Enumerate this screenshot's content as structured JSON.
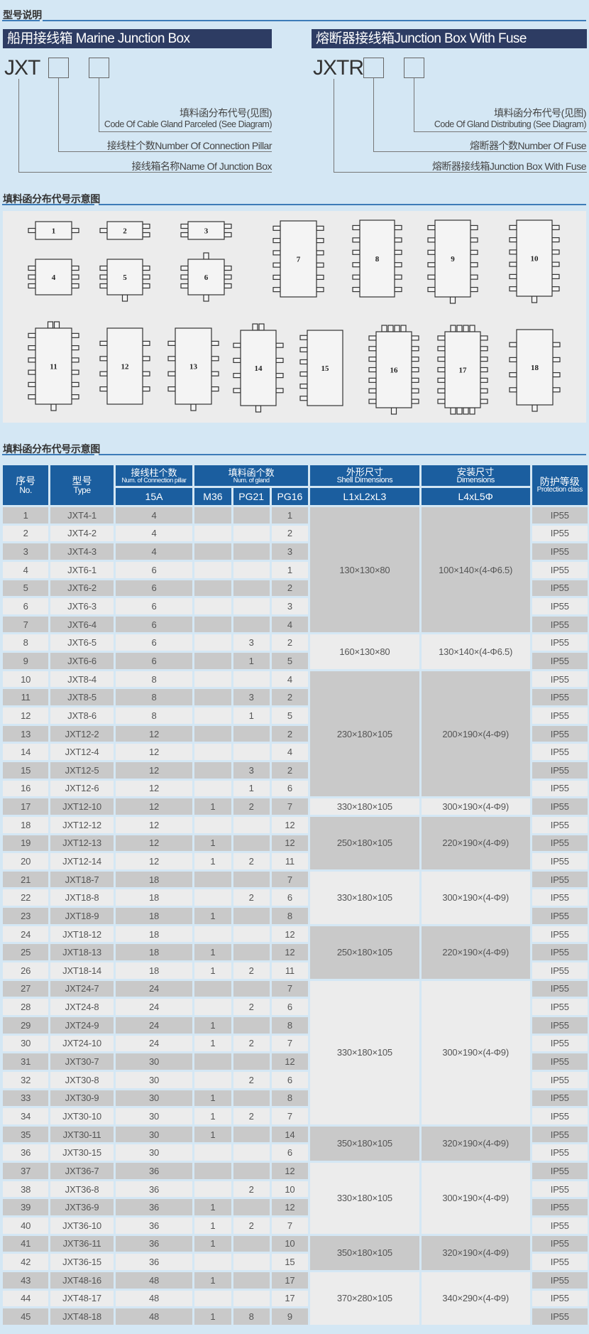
{
  "sections": {
    "model_desc": "型号说明",
    "diagram": "填料函分布代号示意图",
    "table": "填料函分布代号示意图"
  },
  "left_model": {
    "title": "船用接线箱 Marine Junction Box",
    "code": "JXT",
    "label_gland_cn": "填料函分布代号(见图)",
    "label_gland_en": "Code Of Cable Gland Parceled (See Diagram)",
    "label_pillar": "接线柱个数Number Of Connection Pillar",
    "label_name": "接线箱名称Name Of Junction Box"
  },
  "right_model": {
    "title": "熔断器接线箱Junction Box With Fuse",
    "code": "JXTR",
    "label_gland_cn": "填料函分布代号(见图)",
    "label_gland_en": "Code Of Gland Distributing (See Diagram)",
    "label_fuse": "熔断器个数Number Of Fuse",
    "label_name": "熔断器接线箱Junction Box With Fuse"
  },
  "diagram": {
    "labels": [
      "1",
      "2",
      "3",
      "4",
      "5",
      "6",
      "7",
      "8",
      "9",
      "10",
      "11",
      "12",
      "13",
      "14",
      "15",
      "16",
      "17",
      "18"
    ]
  },
  "table": {
    "header": {
      "no_cn": "序号",
      "no_en": "No.",
      "type_cn": "型号",
      "type_en": "Type",
      "pillar_cn": "接线柱个数",
      "pillar_en": "Num. of Connection pillar",
      "gland_cn": "填料函个数",
      "gland_en": "Num. of gland",
      "shell_cn": "外形尺寸",
      "shell_en": "Shell Dimensions",
      "dims_cn": "安装尺寸",
      "dims_en": "Dimensions",
      "prot_cn": "防护等级",
      "prot_en": "Protection class",
      "sub_15a": "15A",
      "sub_m36": "M36",
      "sub_pg21": "PG21",
      "sub_pg16": "PG16",
      "sub_shell": "L1xL2xL3",
      "sub_dims": "L4xL5Φ"
    },
    "rows": [
      [
        "1",
        "JXT4-1",
        "4",
        "",
        "",
        "1",
        "IP55"
      ],
      [
        "2",
        "JXT4-2",
        "4",
        "",
        "",
        "2",
        "IP55"
      ],
      [
        "3",
        "JXT4-3",
        "4",
        "",
        "",
        "3",
        "IP55"
      ],
      [
        "4",
        "JXT6-1",
        "6",
        "",
        "",
        "1",
        "IP55"
      ],
      [
        "5",
        "JXT6-2",
        "6",
        "",
        "",
        "2",
        "IP55"
      ],
      [
        "6",
        "JXT6-3",
        "6",
        "",
        "",
        "3",
        "IP55"
      ],
      [
        "7",
        "JXT6-4",
        "6",
        "",
        "",
        "4",
        "IP55"
      ],
      [
        "8",
        "JXT6-5",
        "6",
        "",
        "3",
        "2",
        "IP55"
      ],
      [
        "9",
        "JXT6-6",
        "6",
        "",
        "1",
        "5",
        "IP55"
      ],
      [
        "10",
        "JXT8-4",
        "8",
        "",
        "",
        "4",
        "IP55"
      ],
      [
        "11",
        "JXT8-5",
        "8",
        "",
        "3",
        "2",
        "IP55"
      ],
      [
        "12",
        "JXT8-6",
        "8",
        "",
        "1",
        "5",
        "IP55"
      ],
      [
        "13",
        "JXT12-2",
        "12",
        "",
        "",
        "2",
        "IP55"
      ],
      [
        "14",
        "JXT12-4",
        "12",
        "",
        "",
        "4",
        "IP55"
      ],
      [
        "15",
        "JXT12-5",
        "12",
        "",
        "3",
        "2",
        "IP55"
      ],
      [
        "16",
        "JXT12-6",
        "12",
        "",
        "1",
        "6",
        "IP55"
      ],
      [
        "17",
        "JXT12-10",
        "12",
        "1",
        "2",
        "7",
        "IP55"
      ],
      [
        "18",
        "JXT12-12",
        "12",
        "",
        "",
        "12",
        "IP55"
      ],
      [
        "19",
        "JXT12-13",
        "12",
        "1",
        "",
        "12",
        "IP55"
      ],
      [
        "20",
        "JXT12-14",
        "12",
        "1",
        "2",
        "11",
        "IP55"
      ],
      [
        "21",
        "JXT18-7",
        "18",
        "",
        "",
        "7",
        "IP55"
      ],
      [
        "22",
        "JXT18-8",
        "18",
        "",
        "2",
        "6",
        "IP55"
      ],
      [
        "23",
        "JXT18-9",
        "18",
        "1",
        "",
        "8",
        "IP55"
      ],
      [
        "24",
        "JXT18-12",
        "18",
        "",
        "",
        "12",
        "IP55"
      ],
      [
        "25",
        "JXT18-13",
        "18",
        "1",
        "",
        "12",
        "IP55"
      ],
      [
        "26",
        "JXT18-14",
        "18",
        "1",
        "2",
        "11",
        "IP55"
      ],
      [
        "27",
        "JXT24-7",
        "24",
        "",
        "",
        "7",
        "IP55"
      ],
      [
        "28",
        "JXT24-8",
        "24",
        "",
        "2",
        "6",
        "IP55"
      ],
      [
        "29",
        "JXT24-9",
        "24",
        "1",
        "",
        "8",
        "IP55"
      ],
      [
        "30",
        "JXT24-10",
        "24",
        "1",
        "2",
        "7",
        "IP55"
      ],
      [
        "31",
        "JXT30-7",
        "30",
        "",
        "",
        "12",
        "IP55"
      ],
      [
        "32",
        "JXT30-8",
        "30",
        "",
        "2",
        "6",
        "IP55"
      ],
      [
        "33",
        "JXT30-9",
        "30",
        "1",
        "",
        "8",
        "IP55"
      ],
      [
        "34",
        "JXT30-10",
        "30",
        "1",
        "2",
        "7",
        "IP55"
      ],
      [
        "35",
        "JXT30-11",
        "30",
        "1",
        "",
        "14",
        "IP55"
      ],
      [
        "36",
        "JXT30-15",
        "30",
        "",
        "",
        "6",
        "IP55"
      ],
      [
        "37",
        "JXT36-7",
        "36",
        "",
        "",
        "12",
        "IP55"
      ],
      [
        "38",
        "JXT36-8",
        "36",
        "",
        "2",
        "10",
        "IP55"
      ],
      [
        "39",
        "JXT36-9",
        "36",
        "1",
        "",
        "12",
        "IP55"
      ],
      [
        "40",
        "JXT36-10",
        "36",
        "1",
        "2",
        "7",
        "IP55"
      ],
      [
        "41",
        "JXT36-11",
        "36",
        "1",
        "",
        "10",
        "IP55"
      ],
      [
        "42",
        "JXT36-15",
        "36",
        "",
        "",
        "15",
        "IP55"
      ],
      [
        "43",
        "JXT48-16",
        "48",
        "1",
        "",
        "17",
        "IP55"
      ],
      [
        "44",
        "JXT48-17",
        "48",
        "",
        "",
        "17",
        "IP55"
      ],
      [
        "45",
        "JXT48-18",
        "48",
        "1",
        "8",
        "9",
        "IP55"
      ]
    ],
    "dimension_groups": [
      {
        "rows": 7,
        "shell": "130×130×80",
        "dims": "100×140×(4-Φ6.5)"
      },
      {
        "rows": 2,
        "shell": "160×130×80",
        "dims": "130×140×(4-Φ6.5)"
      },
      {
        "rows": 7,
        "shell": "230×180×105",
        "dims": "200×190×(4-Φ9)"
      },
      {
        "rows": 1,
        "shell": "330×180×105",
        "dims": "300×190×(4-Φ9)"
      },
      {
        "rows": 3,
        "shell": "250×180×105",
        "dims": "220×190×(4-Φ9)"
      },
      {
        "rows": 3,
        "shell": "330×180×105",
        "dims": "300×190×(4-Φ9)"
      },
      {
        "rows": 3,
        "shell": "250×180×105",
        "dims": "220×190×(4-Φ9)"
      },
      {
        "rows": 8,
        "shell": "330×180×105",
        "dims": "300×190×(4-Φ9)"
      },
      {
        "rows": 2,
        "shell": "350×180×105",
        "dims": "320×190×(4-Φ9)"
      },
      {
        "rows": 4,
        "shell": "330×180×105",
        "dims": "300×190×(4-Φ9)"
      },
      {
        "rows": 2,
        "shell": "350×180×105",
        "dims": "320×190×(4-Φ9)"
      },
      {
        "rows": 3,
        "shell": "370×280×105",
        "dims": "340×290×(4-Φ9)"
      }
    ]
  },
  "colors": {
    "header_blue": "#1b5e9f",
    "title_bar": "#2d3c63",
    "row_dark": "#c9c9c9",
    "row_light": "#ececec",
    "page_bg": "#d4e7f4"
  }
}
